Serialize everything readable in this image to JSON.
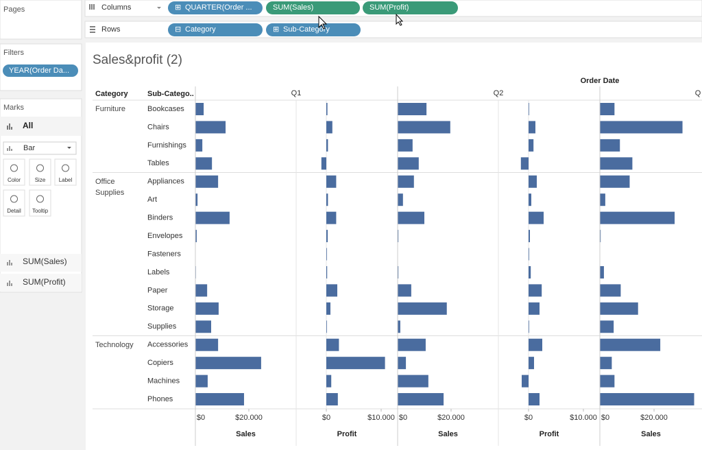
{
  "shelves": {
    "pages_label": "Pages",
    "columns_label": "Columns",
    "rows_label": "Rows",
    "columns": [
      "QUARTER(Order ...",
      "SUM(Sales)",
      "SUM(Profit)"
    ],
    "rows": [
      "Category",
      "Sub-Category"
    ]
  },
  "filters": {
    "title": "Filters",
    "items": [
      "YEAR(Order Da..."
    ]
  },
  "marks": {
    "title": "Marks",
    "all": "All",
    "mark_type": "Bar",
    "buttons": [
      "Color",
      "Size",
      "Label",
      "Detail",
      "Tooltip"
    ],
    "fields": [
      "SUM(Sales)",
      "SUM(Profit)"
    ]
  },
  "chart_data": {
    "type": "bar",
    "title": "Sales&profit (2)",
    "column_header": "Order Date",
    "row_headers": [
      "Category",
      "Sub-Catego.."
    ],
    "columns": [
      "Q1",
      "Q2",
      "Q"
    ],
    "color": "#4a6c9f",
    "groups": [
      {
        "name": "Furniture",
        "subcategories": [
          "Bookcases",
          "Chairs",
          "Furnishings",
          "Tables"
        ]
      },
      {
        "name": "Office Supplies",
        "subcategories": [
          "Appliances",
          "Art",
          "Binders",
          "Envelopes",
          "Fasteners",
          "Labels",
          "Paper",
          "Storage",
          "Supplies"
        ]
      },
      {
        "name": "Technology",
        "subcategories": [
          "Accessories",
          "Copiers",
          "Machines",
          "Phones"
        ]
      }
    ],
    "panes": [
      {
        "column": 0,
        "measure": "Sales",
        "xlim": [
          0,
          37700
        ],
        "xticks": [
          {
            "value": 0,
            "label": "$0"
          },
          {
            "value": 20000,
            "label": "$20.000"
          }
        ],
        "values": [
          3100,
          11300,
          2600,
          6200,
          8500,
          800,
          12800,
          500,
          100,
          200,
          4400,
          8700,
          5900,
          8500,
          24600,
          4600,
          18200
        ]
      },
      {
        "column": 0,
        "measure": "Profit",
        "xlim": [
          -5500,
          13000
        ],
        "xticks": [
          {
            "value": 0,
            "label": "$0"
          },
          {
            "value": 10000,
            "label": "$10.000"
          }
        ],
        "values": [
          200,
          1100,
          300,
          -900,
          1800,
          300,
          1800,
          250,
          100,
          150,
          2000,
          750,
          100,
          2300,
          10700,
          900,
          2100
        ]
      },
      {
        "column": 1,
        "measure": "Sales",
        "xlim": [
          0,
          37700
        ],
        "xticks": [
          {
            "value": 0,
            "label": "$0"
          },
          {
            "value": 20000,
            "label": "$20.000"
          }
        ],
        "values": [
          10800,
          19700,
          5600,
          7900,
          6100,
          2000,
          10000,
          300,
          100,
          300,
          5100,
          18400,
          1000,
          10500,
          3100,
          11500,
          17200
        ]
      },
      {
        "column": 1,
        "measure": "Profit",
        "xlim": [
          -5500,
          13000
        ],
        "xticks": [
          {
            "value": 0,
            "label": "$0"
          },
          {
            "value": 10000,
            "label": "$10.000"
          }
        ],
        "values": [
          100,
          1250,
          900,
          -1400,
          1500,
          500,
          2750,
          250,
          100,
          400,
          2400,
          2000,
          100,
          2500,
          1000,
          -1250,
          2000
        ]
      },
      {
        "column": 2,
        "measure": "Sales",
        "xlim": [
          0,
          37700
        ],
        "xticks": [
          {
            "value": 0,
            "label": "$0"
          },
          {
            "value": 20000,
            "label": "$20.000"
          }
        ],
        "values": [
          5400,
          30500,
          7400,
          12000,
          11000,
          2000,
          27600,
          300,
          100,
          1500,
          7700,
          14100,
          5100,
          22300,
          4400,
          5400,
          34800
        ]
      }
    ]
  }
}
